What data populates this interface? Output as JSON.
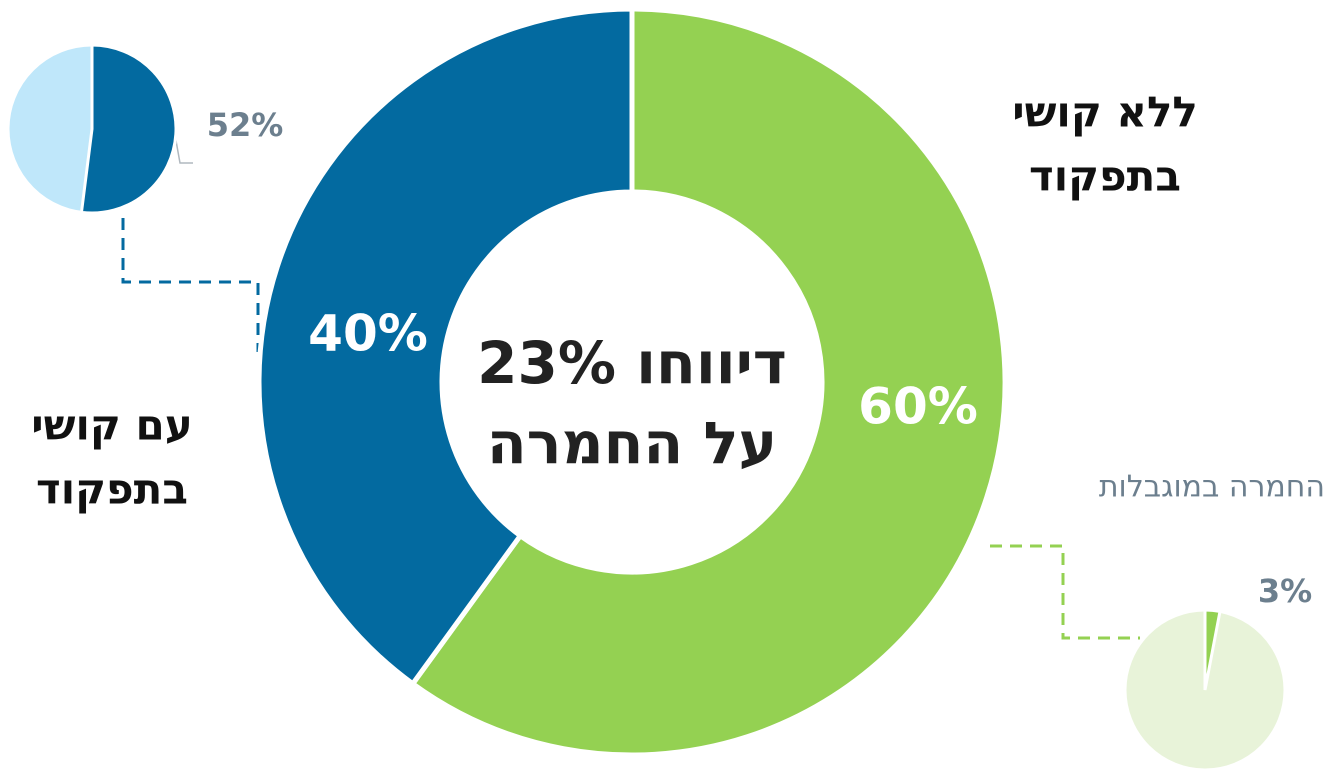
{
  "chart_data": [
    {
      "type": "donut",
      "title": [
        "23% דיווחו",
        "על החמרה"
      ],
      "categories": [
        [
          "ללא קושי",
          "בתפקוד"
        ],
        [
          "עם קושי",
          "בתפקוד"
        ]
      ],
      "values": [
        60,
        40
      ],
      "value_labels": [
        "60%",
        "40%"
      ],
      "colors": [
        "#94d152",
        "#036aa0"
      ]
    },
    {
      "type": "pie",
      "values": [
        52
      ],
      "value_labels": [
        "52%"
      ],
      "color": "#036aa0",
      "background_color": "#bfe7fa"
    },
    {
      "type": "pie",
      "title": "החמרה במוגבלות",
      "values": [
        3
      ],
      "value_labels": [
        "3%"
      ],
      "color": "#94d152",
      "background_color": "#e8f3d9"
    }
  ]
}
